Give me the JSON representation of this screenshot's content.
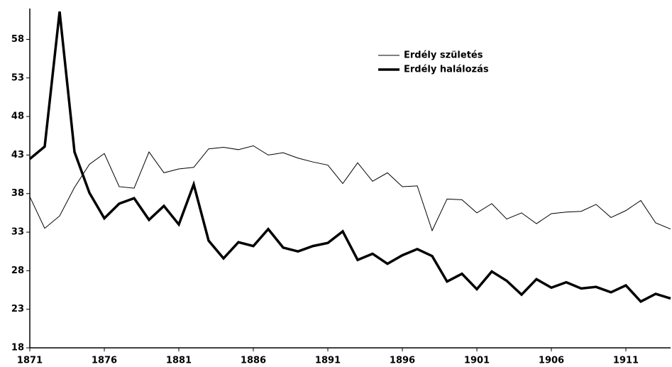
{
  "chart_data": {
    "type": "line",
    "x": [
      1871,
      1872,
      1873,
      1874,
      1875,
      1876,
      1877,
      1878,
      1879,
      1880,
      1881,
      1882,
      1883,
      1884,
      1885,
      1886,
      1887,
      1888,
      1889,
      1890,
      1891,
      1892,
      1893,
      1894,
      1895,
      1896,
      1897,
      1898,
      1899,
      1900,
      1901,
      1902,
      1903,
      1904,
      1905,
      1906,
      1907,
      1908,
      1909,
      1910,
      1911,
      1912,
      1913,
      1914
    ],
    "series": [
      {
        "name": "Erdély születés",
        "color": "#000000",
        "width": 1,
        "values": [
          37.6,
          33.5,
          35.1,
          38.8,
          41.8,
          43.2,
          38.9,
          38.7,
          43.4,
          40.7,
          41.2,
          41.4,
          43.8,
          44.0,
          43.7,
          44.2,
          43.0,
          43.3,
          42.6,
          42.1,
          41.7,
          39.3,
          42.0,
          39.6,
          40.7,
          38.9,
          39.0,
          33.2,
          37.3,
          37.2,
          35.5,
          36.7,
          34.7,
          35.5,
          34.1,
          35.4,
          35.6,
          35.7,
          36.6,
          34.9,
          35.8,
          37.1,
          34.2,
          33.4
        ]
      },
      {
        "name": "Erdély halálozás",
        "color": "#000000",
        "width": 3.5,
        "values": [
          42.5,
          44.1,
          61.6,
          43.4,
          38.1,
          34.8,
          36.7,
          37.4,
          34.6,
          36.4,
          34.0,
          39.2,
          31.9,
          29.6,
          31.7,
          31.2,
          33.4,
          31.0,
          30.5,
          31.2,
          31.6,
          33.1,
          29.4,
          30.2,
          28.9,
          30.0,
          30.8,
          29.9,
          26.6,
          27.6,
          25.6,
          27.9,
          26.7,
          24.9,
          26.9,
          25.8,
          26.5,
          25.7,
          25.9,
          25.2,
          26.1,
          24.0,
          25.0,
          24.4
        ]
      }
    ],
    "xlim": [
      1871,
      1914
    ],
    "xticks": [
      1871,
      1876,
      1881,
      1886,
      1891,
      1896,
      1901,
      1906,
      1911
    ],
    "ylim": [
      18,
      62
    ],
    "yticks": [
      18,
      23,
      28,
      33,
      38,
      43,
      48,
      53,
      58
    ],
    "grid": false,
    "legend": "top-right"
  }
}
